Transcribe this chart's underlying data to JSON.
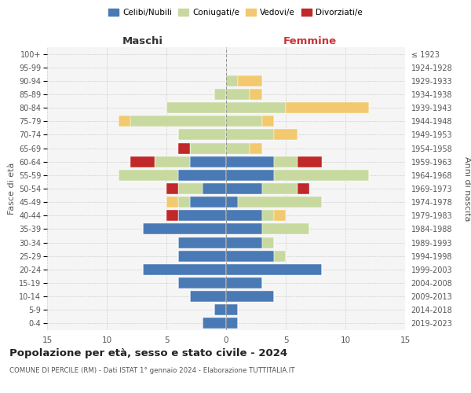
{
  "age_groups": [
    "0-4",
    "5-9",
    "10-14",
    "15-19",
    "20-24",
    "25-29",
    "30-34",
    "35-39",
    "40-44",
    "45-49",
    "50-54",
    "55-59",
    "60-64",
    "65-69",
    "70-74",
    "75-79",
    "80-84",
    "85-89",
    "90-94",
    "95-99",
    "100+"
  ],
  "birth_years": [
    "2019-2023",
    "2014-2018",
    "2009-2013",
    "2004-2008",
    "1999-2003",
    "1994-1998",
    "1989-1993",
    "1984-1988",
    "1979-1983",
    "1974-1978",
    "1969-1973",
    "1964-1968",
    "1959-1963",
    "1954-1958",
    "1949-1953",
    "1944-1948",
    "1939-1943",
    "1934-1938",
    "1929-1933",
    "1924-1928",
    "≤ 1923"
  ],
  "males": {
    "celibi": [
      2,
      1,
      3,
      4,
      7,
      4,
      4,
      7,
      4,
      3,
      2,
      4,
      3,
      0,
      0,
      0,
      0,
      0,
      0,
      0,
      0
    ],
    "coniugati": [
      0,
      0,
      0,
      0,
      0,
      0,
      0,
      0,
      0,
      1,
      2,
      5,
      3,
      3,
      4,
      8,
      5,
      1,
      0,
      0,
      0
    ],
    "vedovi": [
      0,
      0,
      0,
      0,
      0,
      0,
      0,
      0,
      0,
      1,
      0,
      0,
      0,
      0,
      0,
      1,
      0,
      0,
      0,
      0,
      0
    ],
    "divorziati": [
      0,
      0,
      0,
      0,
      0,
      0,
      0,
      0,
      1,
      0,
      1,
      0,
      2,
      1,
      0,
      0,
      0,
      0,
      0,
      0,
      0
    ]
  },
  "females": {
    "nubili": [
      1,
      1,
      4,
      3,
      8,
      4,
      3,
      3,
      3,
      1,
      3,
      4,
      4,
      0,
      0,
      0,
      0,
      0,
      0,
      0,
      0
    ],
    "coniugate": [
      0,
      0,
      0,
      0,
      0,
      1,
      1,
      4,
      1,
      7,
      3,
      8,
      2,
      2,
      4,
      3,
      5,
      2,
      1,
      0,
      0
    ],
    "vedove": [
      0,
      0,
      0,
      0,
      0,
      0,
      0,
      0,
      1,
      0,
      0,
      0,
      0,
      1,
      2,
      1,
      7,
      1,
      2,
      0,
      0
    ],
    "divorziate": [
      0,
      0,
      0,
      0,
      0,
      0,
      0,
      0,
      0,
      0,
      1,
      0,
      2,
      0,
      0,
      0,
      0,
      0,
      0,
      0,
      0
    ]
  },
  "colors": {
    "celibi_nubili": "#4a7ab5",
    "coniugati": "#c8d9a0",
    "vedovi": "#f2c96e",
    "divorziati": "#c0282a"
  },
  "xlim": 15,
  "title": "Popolazione per età, sesso e stato civile - 2024",
  "subtitle": "COMUNE DI PERCILE (RM) - Dati ISTAT 1° gennaio 2024 - Elaborazione TUTTITALIA.IT",
  "ylabel_left": "Fasce di età",
  "ylabel_right": "Anni di nascita",
  "xlabel_left": "Maschi",
  "xlabel_right": "Femmine",
  "bg_color": "#f5f5f5",
  "grid_color": "#cccccc"
}
